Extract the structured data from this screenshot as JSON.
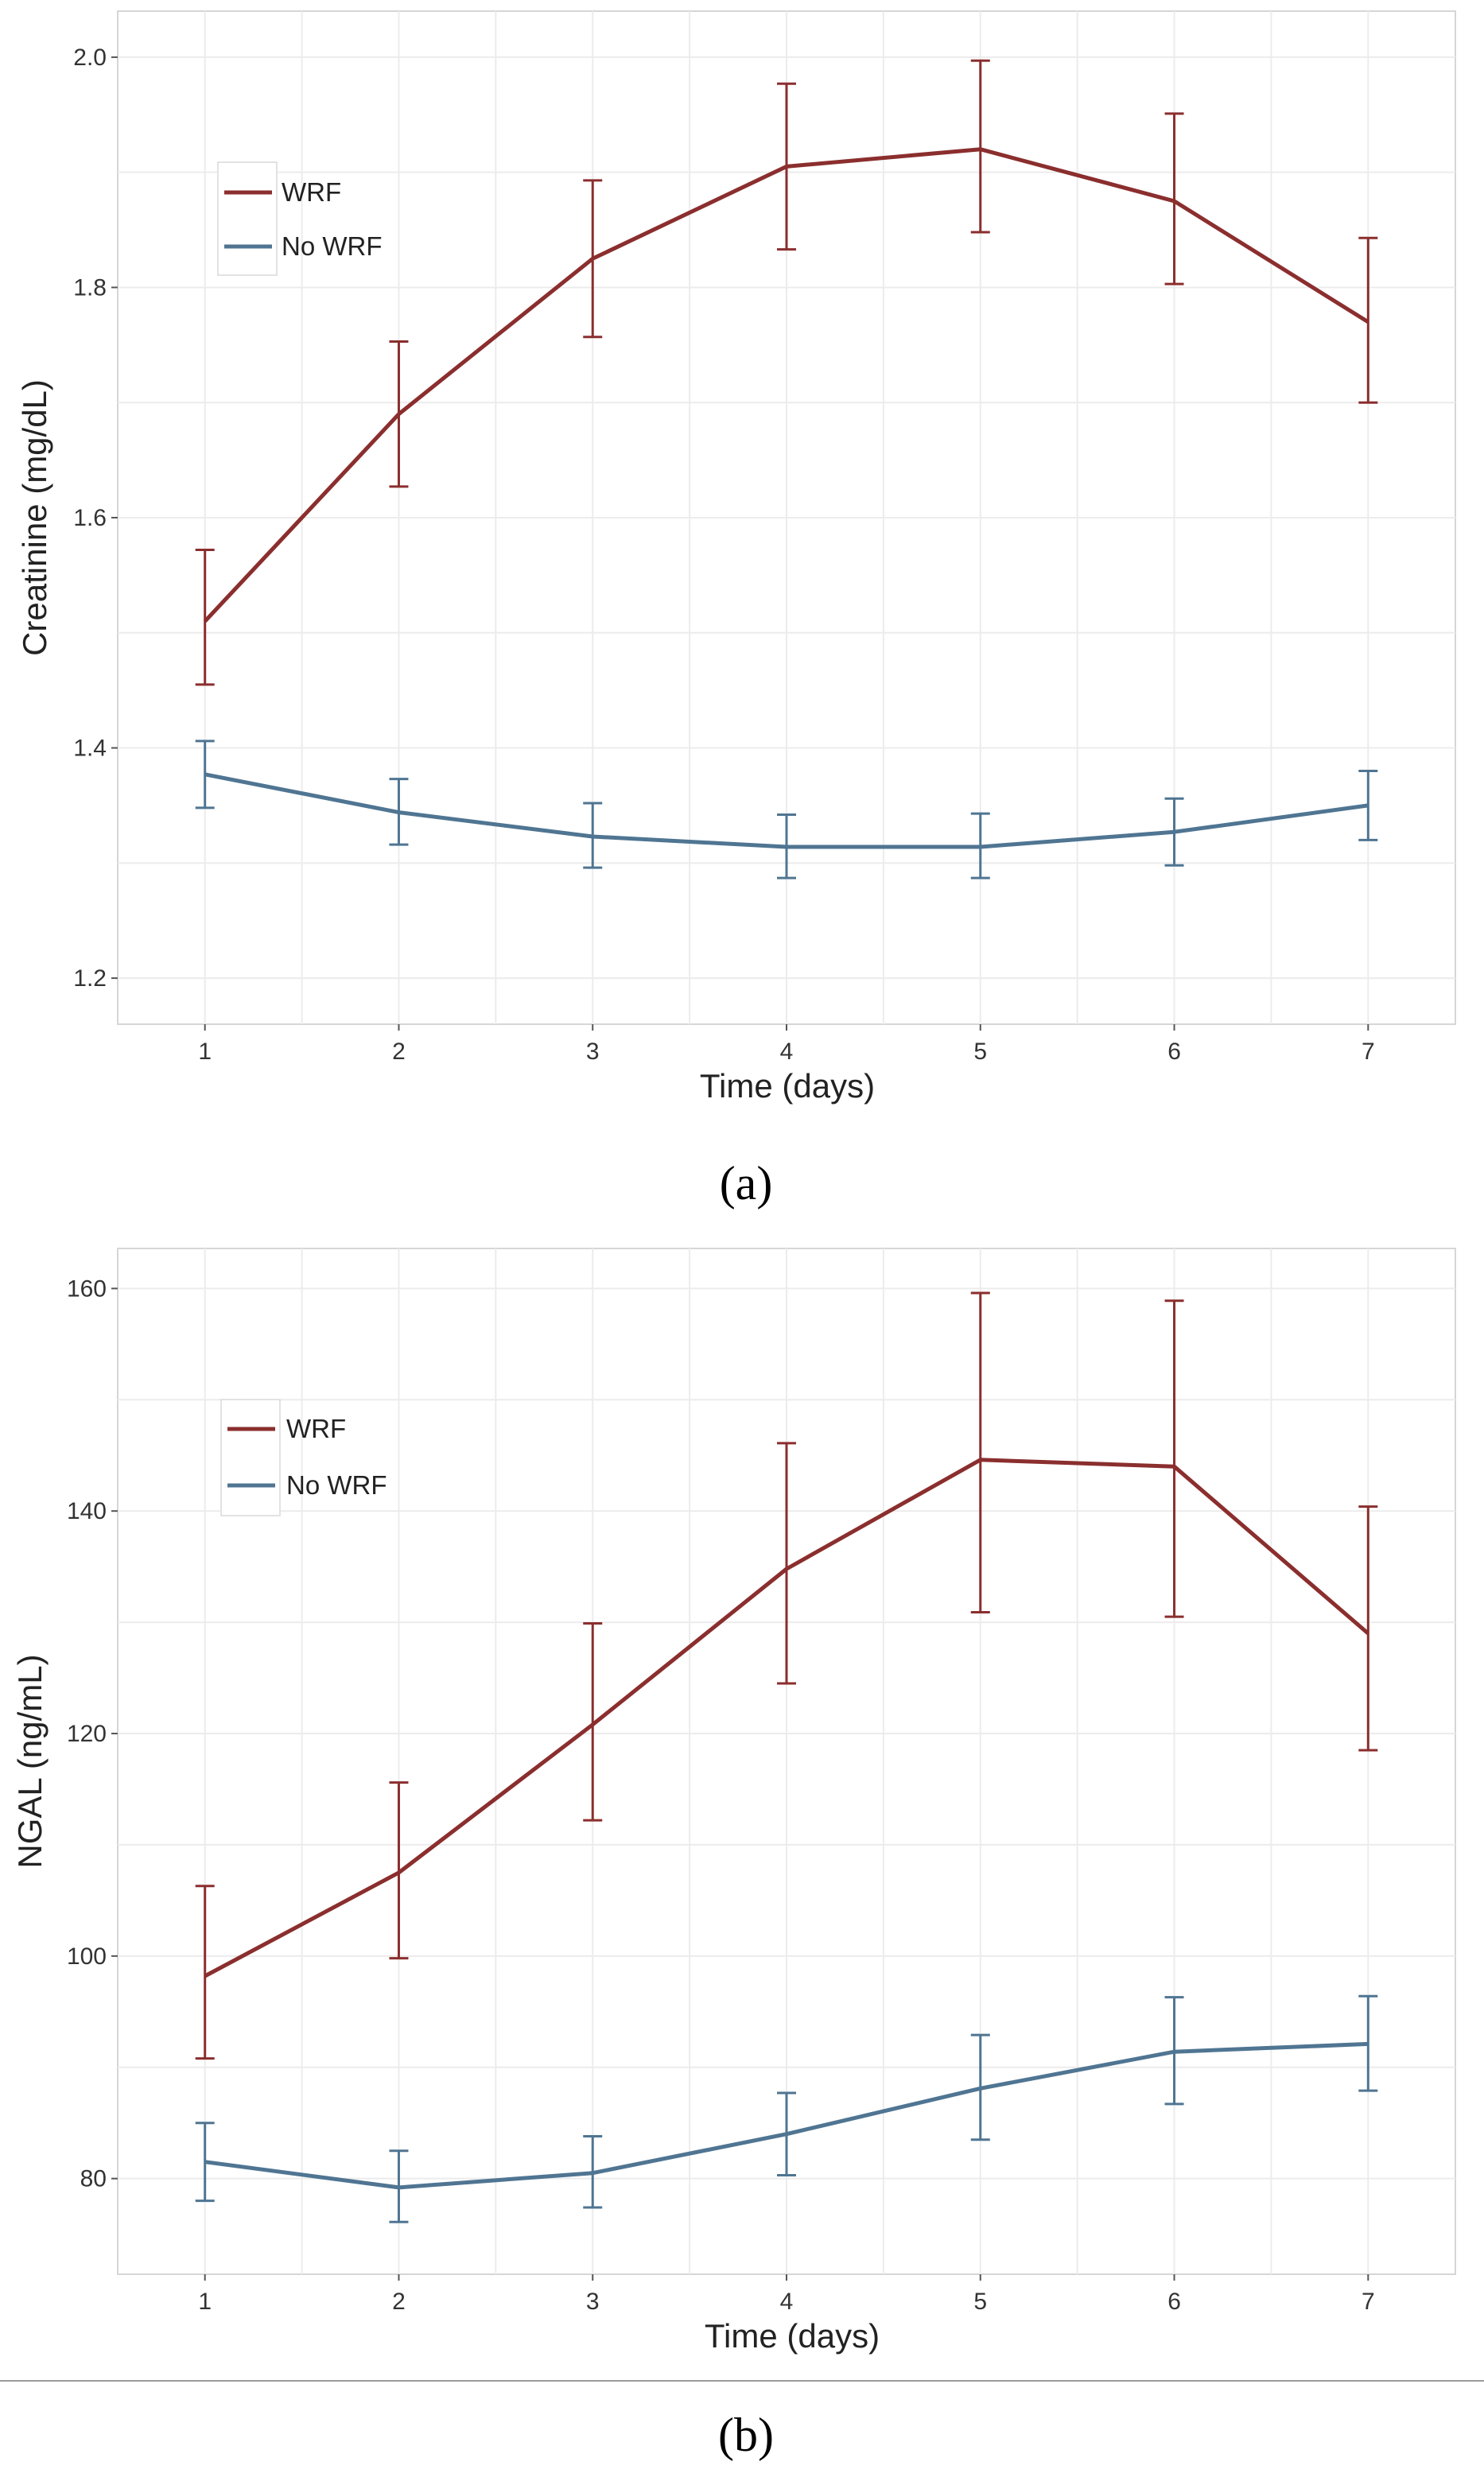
{
  "chart_data": [
    {
      "type": "line",
      "panel_label": "(a)",
      "xlabel": "Time (days)",
      "ylabel": "Creatinine (mg/dL)",
      "x": [
        1,
        2,
        3,
        4,
        5,
        6,
        7
      ],
      "x_tick_labels": [
        "1",
        "2",
        "3",
        "4",
        "5",
        "6",
        "7"
      ],
      "xlim": [
        0.55,
        7.45
      ],
      "ylim": [
        1.16,
        2.04
      ],
      "y_ticks": [
        1.2,
        1.4,
        1.6,
        1.8,
        2.0
      ],
      "y_tick_labels": [
        "1.2",
        "1.4",
        "1.6",
        "1.8",
        "2.0"
      ],
      "grid": true,
      "legend_position": "top-left",
      "series": [
        {
          "name": "WRF",
          "color": "#8b2e2e",
          "values": [
            1.51,
            1.69,
            1.825,
            1.905,
            1.92,
            1.875,
            1.77
          ],
          "lower": [
            1.455,
            1.627,
            1.757,
            1.833,
            1.848,
            1.803,
            1.7
          ],
          "upper": [
            1.572,
            1.753,
            1.893,
            1.977,
            1.997,
            1.951,
            1.843
          ]
        },
        {
          "name": "No WRF",
          "color": "#4f7592",
          "values": [
            1.377,
            1.344,
            1.323,
            1.314,
            1.314,
            1.327,
            1.35
          ],
          "lower": [
            1.348,
            1.316,
            1.296,
            1.287,
            1.287,
            1.298,
            1.32
          ],
          "upper": [
            1.406,
            1.373,
            1.352,
            1.342,
            1.343,
            1.356,
            1.38
          ]
        }
      ]
    },
    {
      "type": "line",
      "panel_label": "(b)",
      "xlabel": "Time (days)",
      "ylabel": "NGAL (ng/mL)",
      "x": [
        1,
        2,
        3,
        4,
        5,
        6,
        7
      ],
      "x_tick_labels": [
        "1",
        "2",
        "3",
        "4",
        "5",
        "6",
        "7"
      ],
      "xlim": [
        0.55,
        7.45
      ],
      "ylim": [
        71.4,
        163.6
      ],
      "y_ticks": [
        80,
        100,
        120,
        140,
        160
      ],
      "y_tick_labels": [
        "80",
        "100",
        "120",
        "140",
        "160"
      ],
      "grid": true,
      "legend_position": "top-left",
      "series": [
        {
          "name": "WRF",
          "color": "#8b2e2e",
          "values": [
            98.2,
            107.5,
            120.8,
            134.8,
            144.6,
            144.0,
            129.0
          ],
          "lower": [
            90.8,
            99.8,
            112.2,
            124.5,
            130.9,
            130.5,
            118.5
          ],
          "upper": [
            106.3,
            115.6,
            129.9,
            146.1,
            159.6,
            158.9,
            140.4
          ]
        },
        {
          "name": "No WRF",
          "color": "#4f7592",
          "values": [
            81.5,
            79.2,
            80.5,
            84.0,
            88.1,
            91.4,
            92.1
          ],
          "lower": [
            78.0,
            76.1,
            77.4,
            80.3,
            83.5,
            86.7,
            87.9
          ],
          "upper": [
            85.0,
            82.5,
            83.8,
            87.7,
            92.9,
            96.3,
            96.4
          ]
        }
      ]
    }
  ]
}
